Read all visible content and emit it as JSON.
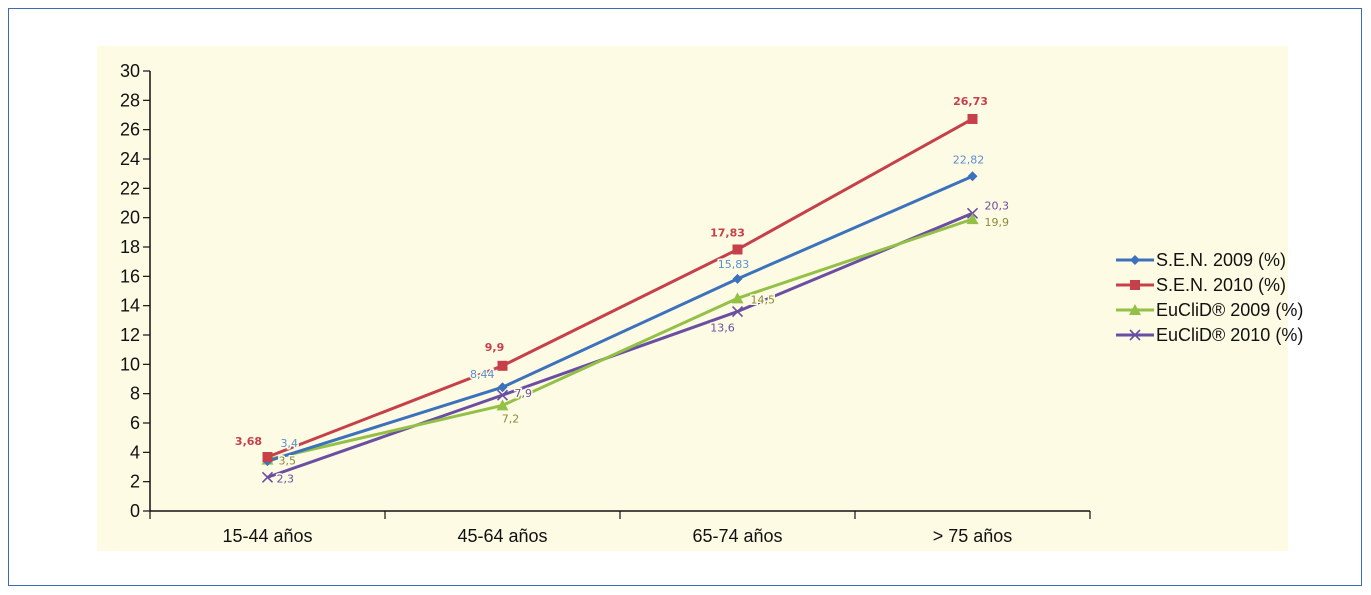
{
  "chart_data": {
    "type": "line",
    "categories": [
      "15-44 años",
      "45-64 años",
      "65-74 años",
      "> 75 años"
    ],
    "ylim": [
      0,
      30
    ],
    "ytick_step": 2,
    "grid": false,
    "legend_position": "right",
    "series": [
      {
        "name": "S.E.N. 2009 (%)",
        "values": [
          3.4,
          8.44,
          15.83,
          22.82
        ],
        "labels": [
          "3,4",
          "8,44",
          "15,83",
          "22,82"
        ],
        "color": "#3c72bc",
        "label_color": "#5b8fd0",
        "marker": "diamond"
      },
      {
        "name": "S.E.N. 2010 (%)",
        "values": [
          3.68,
          9.9,
          17.83,
          26.73
        ],
        "labels": [
          "3,68",
          "9,9",
          "17,83",
          "26,73"
        ],
        "color": "#c6404a",
        "label_color": "#c6404a",
        "marker": "square"
      },
      {
        "name": "EuCliD® 2009 (%)",
        "values": [
          3.5,
          7.2,
          14.5,
          19.9
        ],
        "labels": [
          "3,5",
          "7,2",
          "14,5",
          "19,9"
        ],
        "color": "#93c147",
        "label_color": "#8c8a3a",
        "marker": "triangle"
      },
      {
        "name": "EuCliD® 2010 (%)",
        "values": [
          2.3,
          7.9,
          13.6,
          20.3
        ],
        "labels": [
          "2,3",
          "7,9",
          "13,6",
          "20,3"
        ],
        "color": "#6a4ea2",
        "label_color": "#6a4ea2",
        "marker": "x"
      }
    ]
  }
}
